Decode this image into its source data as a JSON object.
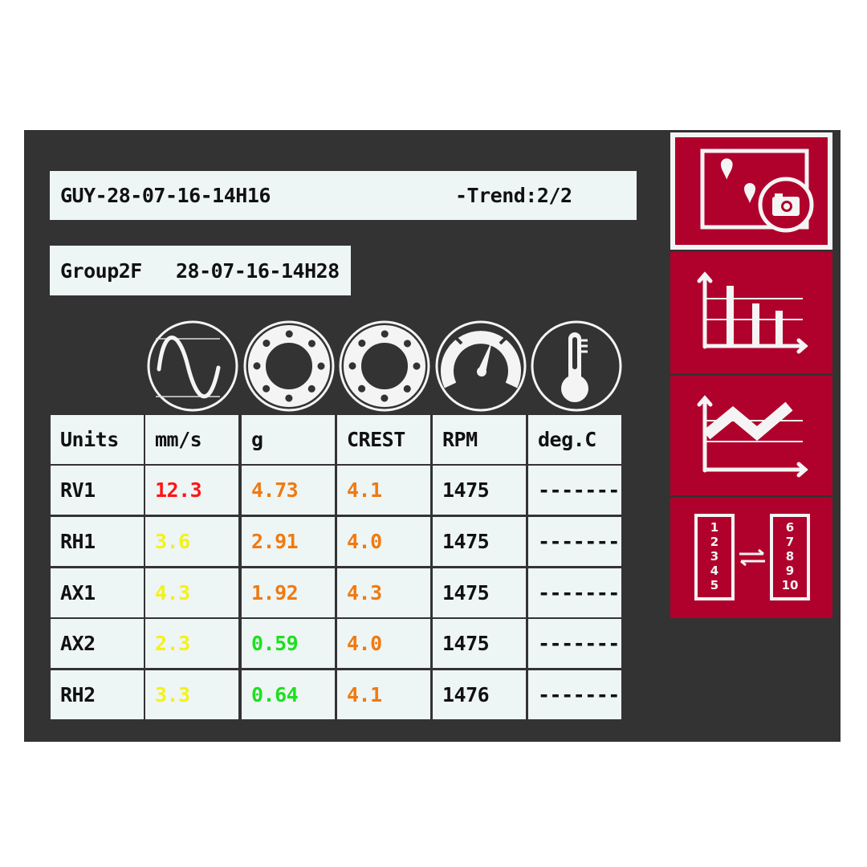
{
  "header": {
    "file_name": "GUY-28-07-16-14H16",
    "trend": "-Trend:2/2"
  },
  "group": {
    "name": "Group2F",
    "timestamp": "28-07-16-14H28"
  },
  "measure_icons": [
    "sine-wave-icon",
    "bearing-icon",
    "bearing-icon",
    "gauge-icon",
    "thermometer-icon"
  ],
  "colors": {
    "red": "#ff1515",
    "orange": "#f07a10",
    "yellow": "#f2f21a",
    "green": "#1ee01e",
    "black": "#111111",
    "accent": "#b0002c",
    "panel": "#333333"
  },
  "table": {
    "headers": [
      "Units",
      " mm/s",
      "g",
      "CREST",
      "RPM",
      "deg.C"
    ],
    "rows": [
      {
        "label": "RV1",
        "values": [
          {
            "v": "12.3",
            "c": "red"
          },
          {
            "v": "4.73",
            "c": "orange"
          },
          {
            "v": "4.1",
            "c": "orange"
          },
          {
            "v": "1475",
            "c": "black"
          },
          {
            "v": "--------",
            "c": "black"
          }
        ]
      },
      {
        "label": "RH1",
        "values": [
          {
            "v": "3.6",
            "c": "yellow"
          },
          {
            "v": "2.91",
            "c": "orange"
          },
          {
            "v": "4.0",
            "c": "orange"
          },
          {
            "v": "1475",
            "c": "black"
          },
          {
            "v": "--------",
            "c": "black"
          }
        ]
      },
      {
        "label": "AX1",
        "values": [
          {
            "v": "4.3",
            "c": "yellow"
          },
          {
            "v": "1.92",
            "c": "orange"
          },
          {
            "v": "4.3",
            "c": "orange"
          },
          {
            "v": "1475",
            "c": "black"
          },
          {
            "v": "--------",
            "c": "black"
          }
        ]
      },
      {
        "label": "AX2",
        "values": [
          {
            "v": "2.3",
            "c": "yellow"
          },
          {
            "v": "0.59",
            "c": "green"
          },
          {
            "v": "4.0",
            "c": "orange"
          },
          {
            "v": "1475",
            "c": "black"
          },
          {
            "v": "--------",
            "c": "black"
          }
        ]
      },
      {
        "label": "RH2",
        "values": [
          {
            "v": "3.3",
            "c": "yellow"
          },
          {
            "v": "0.64",
            "c": "green"
          },
          {
            "v": "4.1",
            "c": "orange"
          },
          {
            "v": "1476",
            "c": "black"
          },
          {
            "v": "--------",
            "c": "black"
          }
        ]
      }
    ]
  },
  "sidebar": {
    "buttons": [
      {
        "icon": "photo-camera-icon",
        "selected": true
      },
      {
        "icon": "bar-chart-icon",
        "selected": false
      },
      {
        "icon": "line-chart-icon",
        "selected": false
      },
      {
        "icon": "swap-list-icon",
        "selected": false
      }
    ],
    "swap_left_numbers": [
      "1",
      "2",
      "3",
      "4",
      "5"
    ],
    "swap_right_numbers": [
      "6",
      "7",
      "8",
      "9",
      "10"
    ]
  }
}
